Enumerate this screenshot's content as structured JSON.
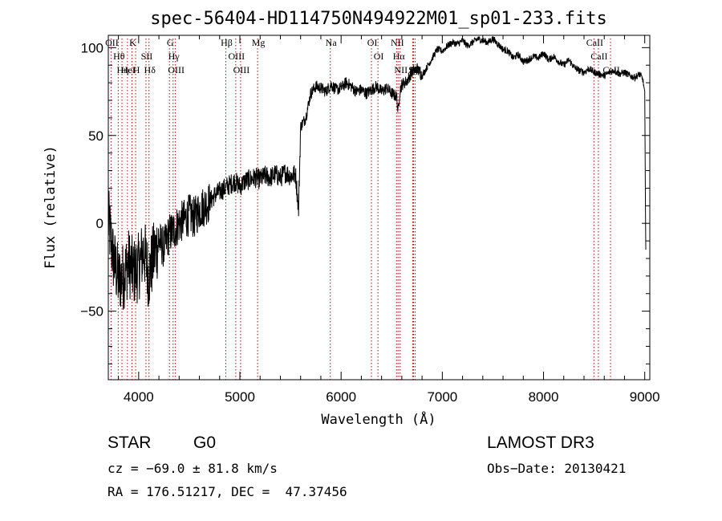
{
  "chart_data": {
    "type": "line",
    "title": "spec-56404-HD114750N494922M01_sp01-233.fits",
    "xlabel": "Wavelength (Å)",
    "ylabel": "Flux (relative)",
    "xlim": [
      3700,
      9050
    ],
    "ylim": [
      -89,
      107
    ],
    "xticks": [
      4000,
      5000,
      6000,
      7000,
      8000,
      9000
    ],
    "yticks": [
      -50,
      0,
      50,
      100
    ],
    "series": [
      {
        "name": "flux",
        "x": [
          3700,
          3750,
          3800,
          3850,
          3900,
          3950,
          4000,
          4050,
          4100,
          4150,
          4200,
          4250,
          4300,
          4350,
          4400,
          4450,
          4500,
          4550,
          4600,
          4650,
          4700,
          4750,
          4800,
          4850,
          4900,
          4950,
          5000,
          5050,
          5100,
          5150,
          5200,
          5250,
          5300,
          5350,
          5400,
          5450,
          5500,
          5550,
          5580,
          5600,
          5620,
          5650,
          5700,
          5750,
          5800,
          5850,
          5900,
          5950,
          6000,
          6050,
          6100,
          6150,
          6200,
          6250,
          6300,
          6350,
          6400,
          6450,
          6500,
          6550,
          6563,
          6580,
          6600,
          6650,
          6700,
          6750,
          6800,
          6850,
          6900,
          6950,
          7000,
          7050,
          7100,
          7150,
          7200,
          7250,
          7300,
          7350,
          7400,
          7450,
          7500,
          7550,
          7600,
          7650,
          7700,
          7750,
          7800,
          7850,
          7900,
          7950,
          8000,
          8050,
          8100,
          8150,
          8200,
          8250,
          8300,
          8350,
          8400,
          8450,
          8500,
          8550,
          8600,
          8650,
          8700,
          8750,
          8800,
          8850,
          8900,
          8950,
          8980,
          9000,
          9010
        ],
        "values": [
          2,
          -20,
          -32,
          -30,
          -22,
          -28,
          -25,
          -15,
          -30,
          -18,
          -10,
          -14,
          -6,
          -4,
          0,
          2,
          5,
          3,
          8,
          10,
          12,
          16,
          18,
          20,
          22,
          24,
          21,
          24,
          25,
          26,
          25,
          27,
          26,
          28,
          26,
          29,
          27,
          28,
          8,
          55,
          57,
          60,
          74,
          78,
          77,
          75,
          79,
          76,
          77,
          80,
          78,
          75,
          76,
          74,
          76,
          78,
          75,
          77,
          74,
          72,
          63,
          75,
          79,
          81,
          86,
          88,
          84,
          89,
          94,
          99,
          98,
          101,
          103,
          102,
          104,
          101,
          103,
          105,
          104,
          103,
          105,
          102,
          99,
          98,
          94,
          96,
          92,
          93,
          95,
          94,
          97,
          93,
          95,
          92,
          90,
          93,
          89,
          87,
          86,
          88,
          86,
          85,
          84,
          86,
          87,
          85,
          86,
          84,
          83,
          85,
          82,
          75,
          -15
        ]
      }
    ],
    "line_features": [
      {
        "wavelength": 3727,
        "label": "OII"
      },
      {
        "wavelength": 3798,
        "label": "Hθ"
      },
      {
        "wavelength": 3835,
        "label": "Hη"
      },
      {
        "wavelength": 3889,
        "label": "HeI"
      },
      {
        "wavelength": 3934,
        "label": "K"
      },
      {
        "wavelength": 3970,
        "label": "H"
      },
      {
        "wavelength": 4072,
        "label": "SII"
      },
      {
        "wavelength": 4102,
        "label": "Hδ"
      },
      {
        "wavelength": 4304,
        "label": "G"
      },
      {
        "wavelength": 4340,
        "label": "Hγ"
      },
      {
        "wavelength": 4363,
        "label": "OIII"
      },
      {
        "wavelength": 4861,
        "label": "Hβ"
      },
      {
        "wavelength": 4959,
        "label": "OIII"
      },
      {
        "wavelength": 5007,
        "label": "OIII"
      },
      {
        "wavelength": 5175,
        "label": "Mg"
      },
      {
        "wavelength": 5893,
        "label": "Na"
      },
      {
        "wavelength": 6300,
        "label": "OI"
      },
      {
        "wavelength": 6364,
        "label": "OI"
      },
      {
        "wavelength": 6548,
        "label": "NII"
      },
      {
        "wavelength": 6563,
        "label": "Hα"
      },
      {
        "wavelength": 6583,
        "label": "NII"
      },
      {
        "wavelength": 6708,
        "label": "Li"
      },
      {
        "wavelength": 6716,
        "label": "SII"
      },
      {
        "wavelength": 6731,
        "label": "SII"
      },
      {
        "wavelength": 8498,
        "label": "CaII"
      },
      {
        "wavelength": 8542,
        "label": "CaII"
      },
      {
        "wavelength": 8662,
        "label": "CaII"
      }
    ],
    "line_color": "#c00000"
  },
  "info": {
    "class": "STAR",
    "subclass": "G0",
    "cz": "cz = −69.0 ± 81.8 km/s",
    "radec": "RA = 176.51217, DEC =  47.37456",
    "survey": "LAMOST DR3",
    "obsdate": "Obs−Date: 20130421"
  }
}
